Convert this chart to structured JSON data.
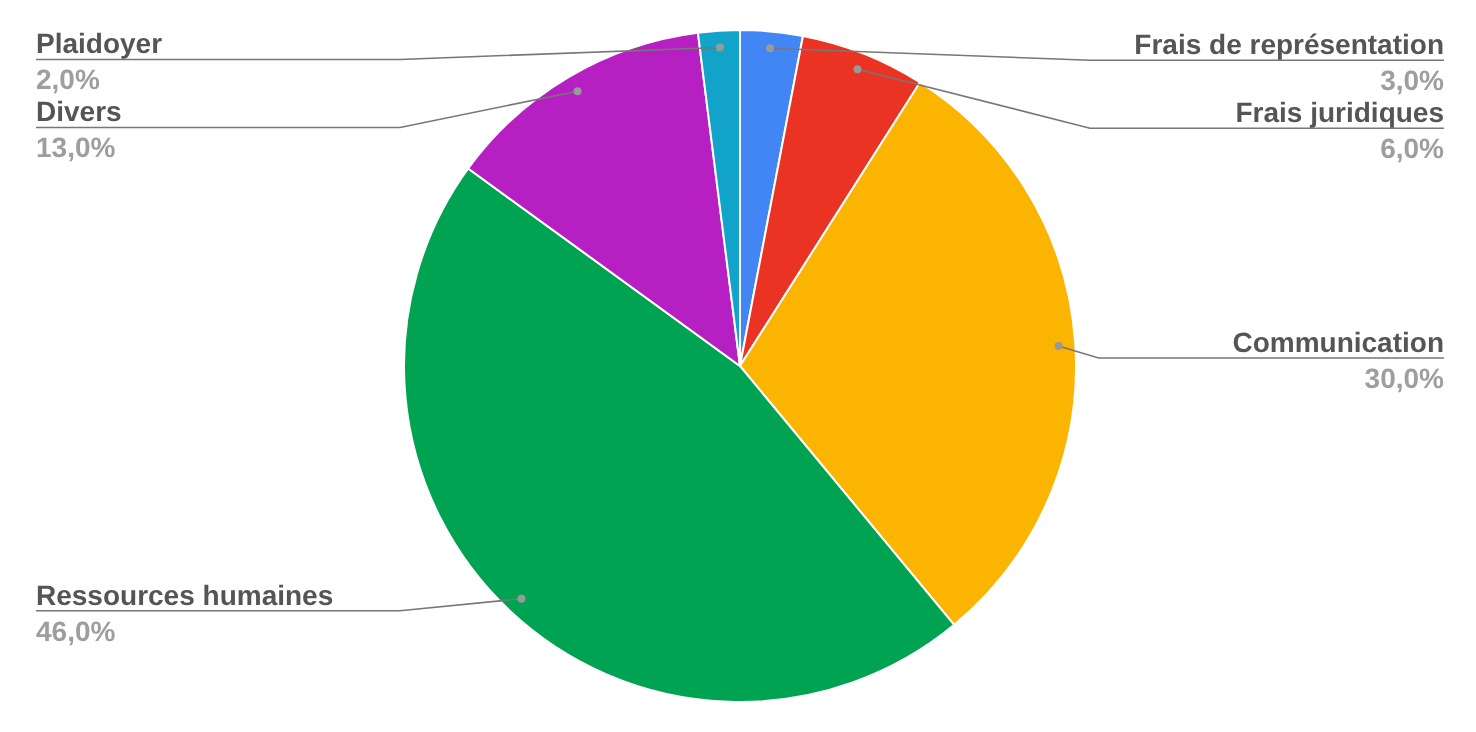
{
  "chart_data": {
    "type": "pie",
    "categories": [
      "Frais de représentation",
      "Frais juridiques",
      "Communication",
      "Ressources humaines",
      "Divers",
      "Plaidoyer"
    ],
    "values": [
      3,
      6,
      30,
      46,
      13,
      2
    ],
    "value_labels": [
      "3,0%",
      "6,0%",
      "30,0%",
      "46,0%",
      "13,0%",
      "2,0%"
    ],
    "colors": [
      "#4285f4",
      "#ea3323",
      "#fbb400",
      "#00a352",
      "#b61fc1",
      "#12a3c8"
    ]
  }
}
